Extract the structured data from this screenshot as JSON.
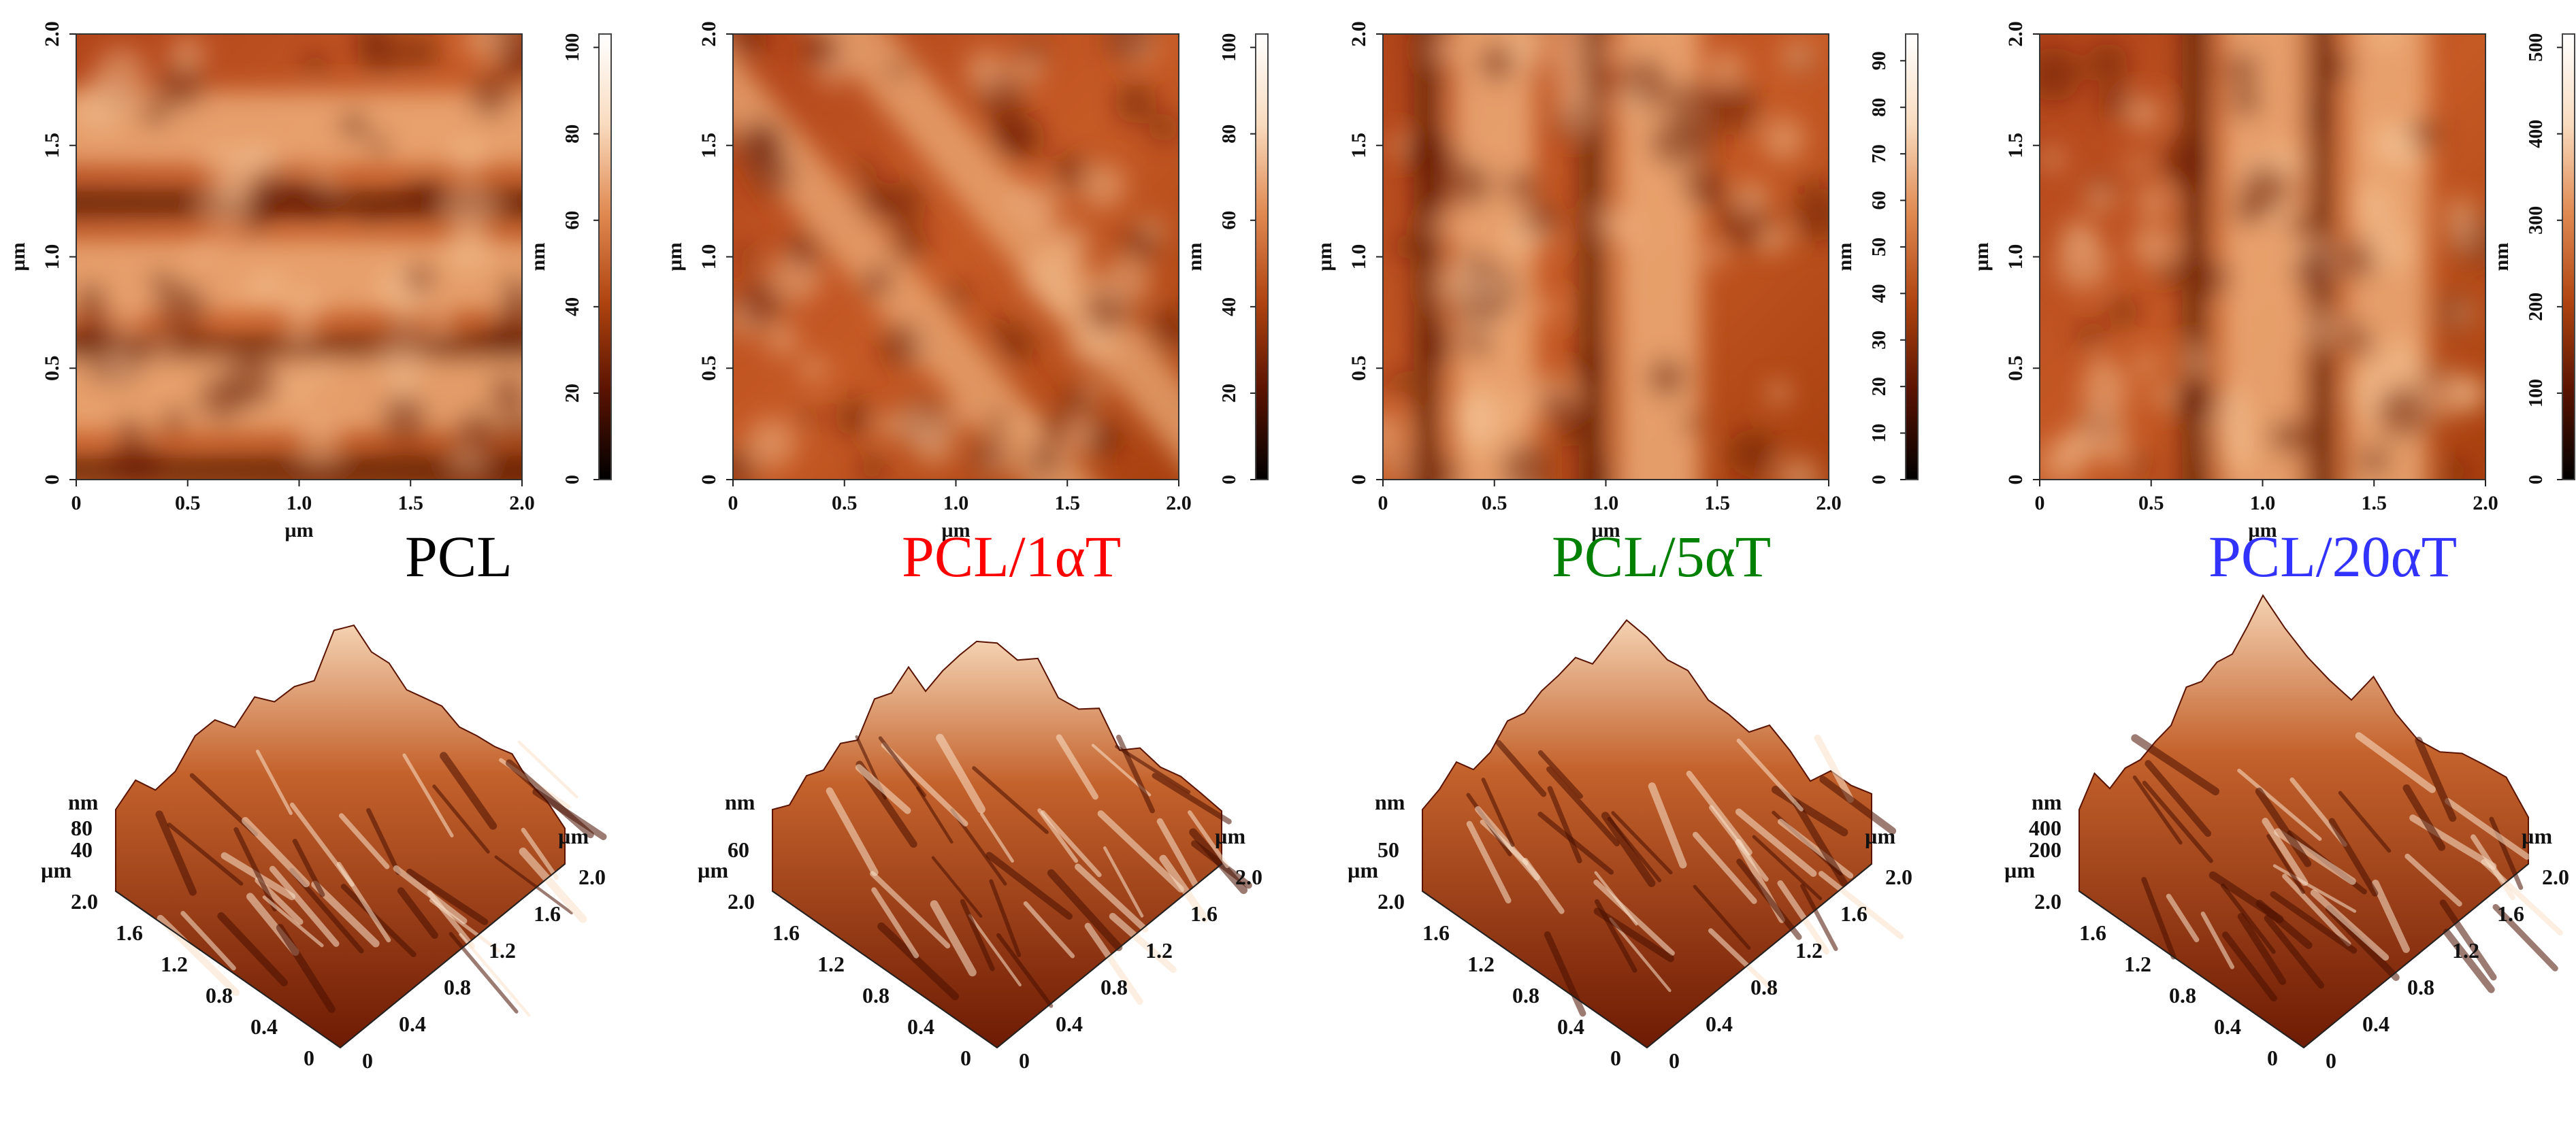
{
  "figure": {
    "colorbar_unit": "nm",
    "length_unit": "µm",
    "xy_ticks": [
      "0",
      "0.5",
      "1.0",
      "1.5",
      "2.0"
    ],
    "iso_ticks": [
      "0",
      "0.4",
      "0.8",
      "1.2",
      "1.6",
      "2.0"
    ],
    "colors": {
      "colormap": [
        "#000000",
        "#5a1300",
        "#b04410",
        "#e08a52",
        "#f9dcc0",
        "#ffffff"
      ]
    }
  },
  "panels": [
    {
      "id": "pcl",
      "label": "PCL",
      "label_color": "#000000",
      "colorbar_ticks": [
        "0",
        "20",
        "40",
        "60",
        "80",
        "100"
      ],
      "iso_z_label": "nm",
      "iso_z_ticks": [
        "40",
        "80"
      ]
    },
    {
      "id": "pcl-1at",
      "label": "PCL/1αT",
      "label_color": "#ff0000",
      "colorbar_ticks": [
        "0",
        "20",
        "40",
        "60",
        "80",
        "100"
      ],
      "iso_z_label": "nm",
      "iso_z_ticks": [
        "60"
      ]
    },
    {
      "id": "pcl-5at",
      "label": "PCL/5αT",
      "label_color": "#008000",
      "colorbar_ticks": [
        "0",
        "10",
        "20",
        "30",
        "40",
        "50",
        "60",
        "70",
        "80",
        "90"
      ],
      "iso_z_label": "nm",
      "iso_z_ticks": [
        "50"
      ]
    },
    {
      "id": "pcl-20at",
      "label": "PCL/20αT",
      "label_color": "#3333ff",
      "colorbar_ticks": [
        "0",
        "100",
        "200",
        "300",
        "400",
        "500"
      ],
      "iso_z_label": "nm",
      "iso_z_ticks": [
        "200",
        "400"
      ]
    }
  ]
}
